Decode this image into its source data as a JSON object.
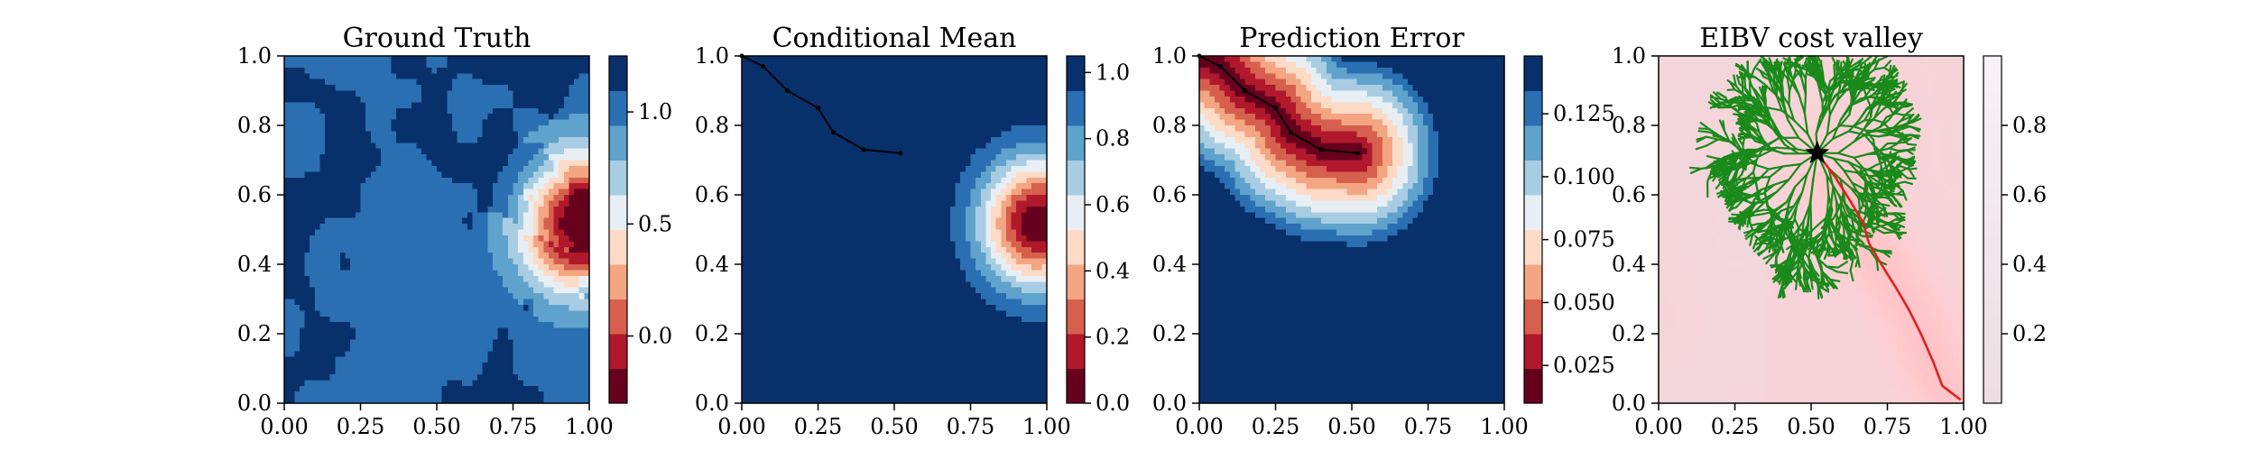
{
  "figure": {
    "panel_count": 4
  },
  "chart_data": [
    {
      "type": "heatmap",
      "title": "Ground Truth",
      "x_ticks": [
        "0.00",
        "0.25",
        "0.50",
        "0.75",
        "1.00"
      ],
      "y_ticks": [
        "0.0",
        "0.2",
        "0.4",
        "0.6",
        "0.8",
        "1.0"
      ],
      "xlim": [
        0,
        1
      ],
      "ylim": [
        0,
        1
      ],
      "colormap": "RdBu",
      "colorbar": {
        "min": -0.3,
        "max": 1.25,
        "ticks": [
          "0.0",
          "0.5",
          "1.0"
        ],
        "tick_values": [
          0.0,
          0.5,
          1.0
        ]
      },
      "field": "ground_truth"
    },
    {
      "type": "heatmap",
      "title": "Conditional Mean",
      "x_ticks": [
        "0.00",
        "0.25",
        "0.50",
        "0.75",
        "1.00"
      ],
      "y_ticks": [
        "0.0",
        "0.2",
        "0.4",
        "0.6",
        "0.8",
        "1.0"
      ],
      "xlim": [
        0,
        1
      ],
      "ylim": [
        0,
        1
      ],
      "colormap": "RdBu",
      "colorbar": {
        "min": 0.0,
        "max": 1.05,
        "ticks": [
          "0.0",
          "0.2",
          "0.4",
          "0.6",
          "0.8",
          "1.0"
        ],
        "tick_values": [
          0.0,
          0.2,
          0.4,
          0.6,
          0.8,
          1.0
        ]
      },
      "field": "conditional_mean",
      "path": [
        [
          0.0,
          1.0
        ],
        [
          0.07,
          0.97
        ],
        [
          0.15,
          0.9
        ],
        [
          0.25,
          0.85
        ],
        [
          0.3,
          0.78
        ],
        [
          0.4,
          0.73
        ],
        [
          0.52,
          0.72
        ]
      ]
    },
    {
      "type": "heatmap",
      "title": "Prediction Error",
      "x_ticks": [
        "0.00",
        "0.25",
        "0.50",
        "0.75",
        "1.00"
      ],
      "y_ticks": [
        "0.0",
        "0.2",
        "0.4",
        "0.6",
        "0.8",
        "1.0"
      ],
      "xlim": [
        0,
        1
      ],
      "ylim": [
        0,
        1
      ],
      "colormap": "RdBu",
      "colorbar": {
        "min": 0.01,
        "max": 0.148,
        "ticks": [
          "0.025",
          "0.050",
          "0.075",
          "0.100",
          "0.125"
        ],
        "tick_values": [
          0.025,
          0.05,
          0.075,
          0.1,
          0.125
        ]
      },
      "field": "prediction_error",
      "path": [
        [
          0.0,
          1.0
        ],
        [
          0.07,
          0.97
        ],
        [
          0.15,
          0.9
        ],
        [
          0.25,
          0.85
        ],
        [
          0.3,
          0.78
        ],
        [
          0.4,
          0.73
        ],
        [
          0.52,
          0.72
        ]
      ]
    },
    {
      "type": "heatmap",
      "title": "EIBV cost valley",
      "x_ticks": [
        "0.00",
        "0.25",
        "0.50",
        "0.75",
        "1.00"
      ],
      "y_ticks": [
        "0.0",
        "0.2",
        "0.4",
        "0.6",
        "0.8",
        "1.0"
      ],
      "xlim": [
        0,
        1
      ],
      "ylim": [
        0,
        1
      ],
      "colormap": "RdBu",
      "colorbar": {
        "min": 0.0,
        "max": 1.0,
        "ticks": [
          "0.2",
          "0.4",
          "0.6",
          "0.8"
        ],
        "tick_values": [
          0.2,
          0.4,
          0.6,
          0.8
        ]
      },
      "field": "cost_valley",
      "start_marker": [
        0.52,
        0.72
      ],
      "tree_color": "#1a8a1a",
      "best_path_color": "#e02020",
      "best_path": [
        [
          0.52,
          0.72
        ],
        [
          0.58,
          0.65
        ],
        [
          0.63,
          0.58
        ],
        [
          0.67,
          0.52
        ],
        [
          0.69,
          0.46
        ],
        [
          0.73,
          0.4
        ],
        [
          0.78,
          0.33
        ],
        [
          0.82,
          0.27
        ],
        [
          0.86,
          0.2
        ],
        [
          0.9,
          0.12
        ],
        [
          0.93,
          0.05
        ],
        [
          0.99,
          0.01
        ]
      ]
    }
  ]
}
